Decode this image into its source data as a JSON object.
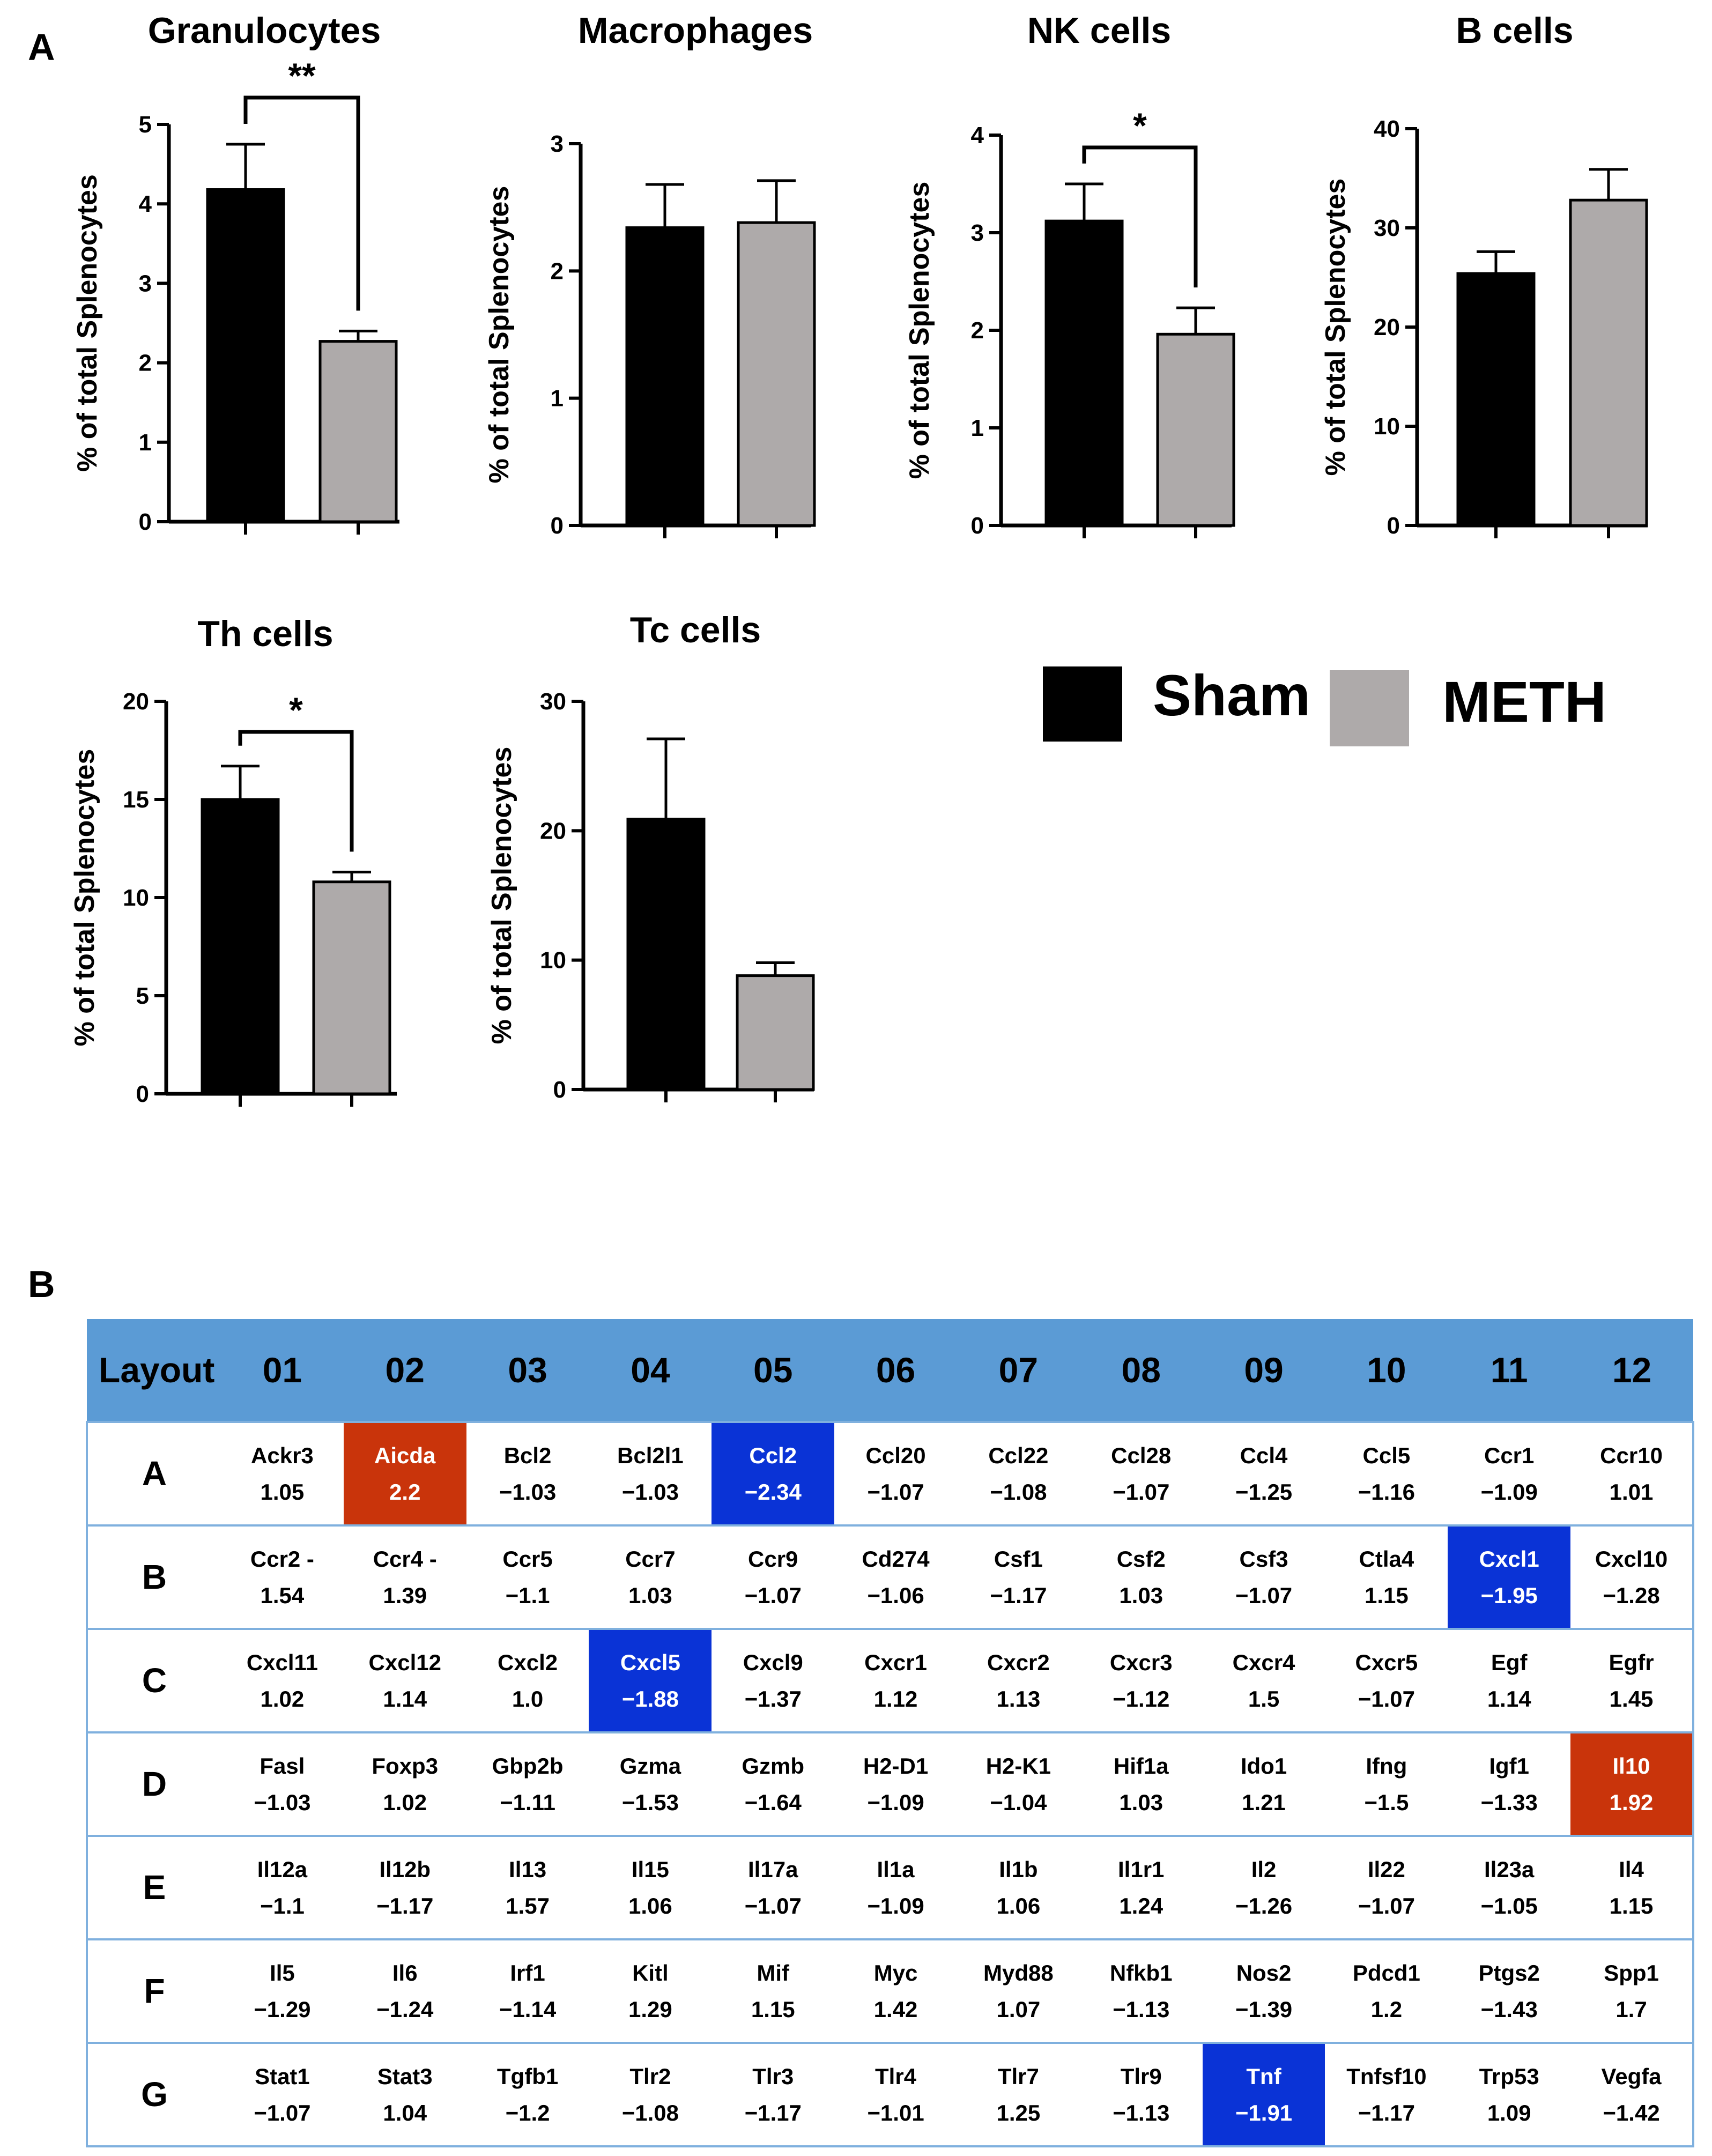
{
  "panels": {
    "a": "A",
    "b": "B"
  },
  "chart_data": [
    {
      "type": "bar",
      "title": "Granulocytes",
      "ylabel": "% of total Splenocytes",
      "categories": [
        "Sham",
        "METH"
      ],
      "values": [
        4.18,
        2.27
      ],
      "errors": [
        0.57,
        0.13
      ],
      "ylim": [
        0,
        5
      ],
      "yticks": [
        "0",
        "1",
        "2",
        "3",
        "4",
        "5"
      ],
      "significance": "**"
    },
    {
      "type": "bar",
      "title": "Macrophages",
      "ylabel": "% of total Splenocytes",
      "categories": [
        "Sham",
        "METH"
      ],
      "values": [
        2.34,
        2.38
      ],
      "errors": [
        0.34,
        0.33
      ],
      "ylim": [
        0,
        3
      ],
      "yticks": [
        "0",
        "1",
        "2",
        "3"
      ],
      "significance": ""
    },
    {
      "type": "bar",
      "title": "NK cells",
      "ylabel": "% of total Splenocytes",
      "categories": [
        "Sham",
        "METH"
      ],
      "values": [
        3.12,
        1.96
      ],
      "errors": [
        0.38,
        0.27
      ],
      "ylim": [
        0,
        4
      ],
      "yticks": [
        "0",
        "1",
        "2",
        "3",
        "4"
      ],
      "significance": "*"
    },
    {
      "type": "bar",
      "title": "B cells",
      "ylabel": "% of total Splenocytes",
      "categories": [
        "Sham",
        "METH"
      ],
      "values": [
        25.4,
        32.8
      ],
      "errors": [
        2.2,
        3.1
      ],
      "ylim": [
        0,
        40
      ],
      "yticks": [
        "0",
        "10",
        "20",
        "30",
        "40"
      ],
      "significance": ""
    },
    {
      "type": "bar",
      "title": "Th cells",
      "ylabel": "% of total Splenocytes",
      "categories": [
        "Sham",
        "METH"
      ],
      "values": [
        15.0,
        10.8
      ],
      "errors": [
        1.7,
        0.5
      ],
      "ylim": [
        0,
        20
      ],
      "yticks": [
        "0",
        "5",
        "10",
        "15",
        "20"
      ],
      "significance": "*"
    },
    {
      "type": "bar",
      "title": "Tc cells",
      "ylabel": "% of total Splenocytes",
      "categories": [
        "Sham",
        "METH"
      ],
      "values": [
        20.9,
        8.8
      ],
      "errors": [
        6.2,
        1.0
      ],
      "ylim": [
        0,
        30
      ],
      "yticks": [
        "0",
        "10",
        "20",
        "30"
      ],
      "significance": ""
    }
  ],
  "legend": [
    {
      "label": "Sham",
      "color": "#000000"
    },
    {
      "label": "METH",
      "color": "#aeaaaa"
    }
  ],
  "table": {
    "corner": "Layout",
    "columns": [
      "01",
      "02",
      "03",
      "04",
      "05",
      "06",
      "07",
      "08",
      "09",
      "10",
      "11",
      "12"
    ],
    "rows": [
      {
        "label": "A",
        "cells": [
          {
            "gene": "Ackr3",
            "value": "1.05"
          },
          {
            "gene": "Aicda",
            "value": "2.2",
            "hl": "up"
          },
          {
            "gene": "Bcl2",
            "value": "−1.03"
          },
          {
            "gene": "Bcl2l1",
            "value": "−1.03"
          },
          {
            "gene": "Ccl2",
            "value": "−2.34",
            "hl": "down"
          },
          {
            "gene": "Ccl20",
            "value": "−1.07"
          },
          {
            "gene": "Ccl22",
            "value": "−1.08"
          },
          {
            "gene": "Ccl28",
            "value": "−1.07"
          },
          {
            "gene": "Ccl4",
            "value": "−1.25"
          },
          {
            "gene": "Ccl5",
            "value": "−1.16"
          },
          {
            "gene": "Ccr1",
            "value": "−1.09"
          },
          {
            "gene": "Ccr10",
            "value": "1.01"
          }
        ]
      },
      {
        "label": "B",
        "cells": [
          {
            "gene": "Ccr2 -",
            "value": "1.54"
          },
          {
            "gene": "Ccr4 -",
            "value": "1.39"
          },
          {
            "gene": "Ccr5",
            "value": "−1.1"
          },
          {
            "gene": "Ccr7",
            "value": "1.03"
          },
          {
            "gene": "Ccr9",
            "value": "−1.07"
          },
          {
            "gene": "Cd274",
            "value": "−1.06"
          },
          {
            "gene": "Csf1",
            "value": "−1.17"
          },
          {
            "gene": "Csf2",
            "value": "1.03"
          },
          {
            "gene": "Csf3",
            "value": "−1.07"
          },
          {
            "gene": "Ctla4",
            "value": "1.15"
          },
          {
            "gene": "Cxcl1",
            "value": "−1.95",
            "hl": "down"
          },
          {
            "gene": "Cxcl10",
            "value": "−1.28"
          }
        ]
      },
      {
        "label": "C",
        "cells": [
          {
            "gene": "Cxcl11",
            "value": "1.02"
          },
          {
            "gene": "Cxcl12",
            "value": "1.14"
          },
          {
            "gene": "Cxcl2",
            "value": "1.0"
          },
          {
            "gene": "Cxcl5",
            "value": "−1.88",
            "hl": "down"
          },
          {
            "gene": "Cxcl9",
            "value": "−1.37"
          },
          {
            "gene": "Cxcr1",
            "value": "1.12"
          },
          {
            "gene": "Cxcr2",
            "value": "1.13"
          },
          {
            "gene": "Cxcr3",
            "value": "−1.12"
          },
          {
            "gene": "Cxcr4",
            "value": "1.5"
          },
          {
            "gene": "Cxcr5",
            "value": "−1.07"
          },
          {
            "gene": "Egf",
            "value": "1.14"
          },
          {
            "gene": "Egfr",
            "value": "1.45"
          }
        ]
      },
      {
        "label": "D",
        "cells": [
          {
            "gene": "Fasl",
            "value": "−1.03"
          },
          {
            "gene": "Foxp3",
            "value": "1.02"
          },
          {
            "gene": "Gbp2b",
            "value": "−1.11"
          },
          {
            "gene": "Gzma",
            "value": "−1.53"
          },
          {
            "gene": "Gzmb",
            "value": "−1.64"
          },
          {
            "gene": "H2-D1",
            "value": "−1.09"
          },
          {
            "gene": "H2-K1",
            "value": "−1.04"
          },
          {
            "gene": "Hif1a",
            "value": "1.03"
          },
          {
            "gene": "Ido1",
            "value": "1.21"
          },
          {
            "gene": "Ifng",
            "value": "−1.5"
          },
          {
            "gene": "Igf1",
            "value": "−1.33"
          },
          {
            "gene": "Il10",
            "value": "1.92",
            "hl": "up"
          }
        ]
      },
      {
        "label": "E",
        "cells": [
          {
            "gene": "Il12a",
            "value": "−1.1"
          },
          {
            "gene": "Il12b",
            "value": "−1.17"
          },
          {
            "gene": "Il13",
            "value": "1.57"
          },
          {
            "gene": "Il15",
            "value": "1.06"
          },
          {
            "gene": "Il17a",
            "value": "−1.07"
          },
          {
            "gene": "Il1a",
            "value": "−1.09"
          },
          {
            "gene": "Il1b",
            "value": "1.06"
          },
          {
            "gene": "Il1r1",
            "value": "1.24"
          },
          {
            "gene": "Il2",
            "value": "−1.26"
          },
          {
            "gene": "Il22",
            "value": "−1.07"
          },
          {
            "gene": "Il23a",
            "value": "−1.05"
          },
          {
            "gene": "Il4",
            "value": "1.15"
          }
        ]
      },
      {
        "label": "F",
        "cells": [
          {
            "gene": "Il5",
            "value": "−1.29"
          },
          {
            "gene": "Il6",
            "value": "−1.24"
          },
          {
            "gene": "Irf1",
            "value": "−1.14"
          },
          {
            "gene": "Kitl",
            "value": "1.29"
          },
          {
            "gene": "Mif",
            "value": "1.15"
          },
          {
            "gene": "Myc",
            "value": "1.42"
          },
          {
            "gene": "Myd88",
            "value": "1.07"
          },
          {
            "gene": "Nfkb1",
            "value": "−1.13"
          },
          {
            "gene": "Nos2",
            "value": "−1.39"
          },
          {
            "gene": "Pdcd1",
            "value": "1.2"
          },
          {
            "gene": "Ptgs2",
            "value": "−1.43"
          },
          {
            "gene": "Spp1",
            "value": "1.7"
          }
        ]
      },
      {
        "label": "G",
        "cells": [
          {
            "gene": "Stat1",
            "value": "−1.07"
          },
          {
            "gene": "Stat3",
            "value": "1.04"
          },
          {
            "gene": "Tgfb1",
            "value": "−1.2"
          },
          {
            "gene": "Tlr2",
            "value": "−1.08"
          },
          {
            "gene": "Tlr3",
            "value": "−1.17"
          },
          {
            "gene": "Tlr4",
            "value": "−1.01"
          },
          {
            "gene": "Tlr7",
            "value": "1.25"
          },
          {
            "gene": "Tlr9",
            "value": "−1.13"
          },
          {
            "gene": "Tnf",
            "value": "−1.91",
            "hl": "down"
          },
          {
            "gene": "Tnfsf10",
            "value": "−1.17"
          },
          {
            "gene": "Trp53",
            "value": "1.09"
          },
          {
            "gene": "Vegfa",
            "value": "−1.42"
          }
        ]
      }
    ]
  }
}
